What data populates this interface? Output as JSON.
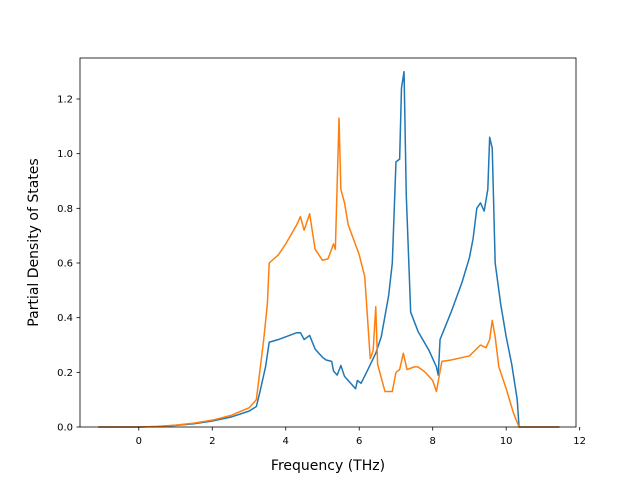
{
  "chart_data": {
    "type": "line",
    "title": "",
    "xlabel": "Frequency (THz)",
    "ylabel": "Partial Density of States",
    "xlim": [
      -1.6,
      11.9
    ],
    "ylim": [
      0.0,
      1.35
    ],
    "xticks": [
      0,
      2,
      4,
      6,
      8,
      10,
      12
    ],
    "yticks": [
      0.0,
      0.2,
      0.4,
      0.6,
      0.8,
      1.0,
      1.2
    ],
    "xtick_labels": [
      "0",
      "2",
      "4",
      "6",
      "8",
      "10",
      "12"
    ],
    "ytick_labels": [
      "0.0",
      "0.2",
      "0.4",
      "0.6",
      "0.8",
      "1.0",
      "1.2"
    ],
    "grid": false,
    "legend": "none",
    "series": [
      {
        "color": "#1f77b4",
        "points": [
          [
            -1.1,
            0.0
          ],
          [
            0.0,
            0.0
          ],
          [
            0.5,
            0.002
          ],
          [
            1.0,
            0.006
          ],
          [
            1.5,
            0.012
          ],
          [
            2.0,
            0.022
          ],
          [
            2.5,
            0.036
          ],
          [
            3.0,
            0.058
          ],
          [
            3.2,
            0.075
          ],
          [
            3.3,
            0.13
          ],
          [
            3.45,
            0.22
          ],
          [
            3.55,
            0.31
          ],
          [
            3.8,
            0.32
          ],
          [
            4.1,
            0.335
          ],
          [
            4.3,
            0.345
          ],
          [
            4.4,
            0.345
          ],
          [
            4.5,
            0.32
          ],
          [
            4.65,
            0.335
          ],
          [
            4.8,
            0.285
          ],
          [
            5.0,
            0.255
          ],
          [
            5.1,
            0.245
          ],
          [
            5.25,
            0.24
          ],
          [
            5.3,
            0.205
          ],
          [
            5.4,
            0.19
          ],
          [
            5.5,
            0.225
          ],
          [
            5.6,
            0.185
          ],
          [
            5.8,
            0.155
          ],
          [
            5.9,
            0.14
          ],
          [
            5.95,
            0.17
          ],
          [
            6.05,
            0.16
          ],
          [
            6.2,
            0.2
          ],
          [
            6.45,
            0.27
          ],
          [
            6.6,
            0.33
          ],
          [
            6.8,
            0.48
          ],
          [
            6.9,
            0.6
          ],
          [
            7.0,
            0.97
          ],
          [
            7.1,
            0.98
          ],
          [
            7.15,
            1.24
          ],
          [
            7.22,
            1.3
          ],
          [
            7.28,
            0.85
          ],
          [
            7.4,
            0.42
          ],
          [
            7.6,
            0.35
          ],
          [
            7.9,
            0.28
          ],
          [
            8.1,
            0.22
          ],
          [
            8.15,
            0.19
          ],
          [
            8.2,
            0.32
          ],
          [
            8.5,
            0.42
          ],
          [
            8.8,
            0.53
          ],
          [
            9.0,
            0.62
          ],
          [
            9.1,
            0.69
          ],
          [
            9.2,
            0.8
          ],
          [
            9.3,
            0.82
          ],
          [
            9.4,
            0.79
          ],
          [
            9.5,
            0.87
          ],
          [
            9.55,
            1.06
          ],
          [
            9.62,
            1.02
          ],
          [
            9.7,
            0.6
          ],
          [
            9.85,
            0.45
          ],
          [
            10.0,
            0.33
          ],
          [
            10.15,
            0.23
          ],
          [
            10.3,
            0.1
          ],
          [
            10.35,
            0.0
          ],
          [
            11.45,
            0.0
          ]
        ]
      },
      {
        "color": "#ff7f0e",
        "points": [
          [
            -1.1,
            0.0
          ],
          [
            0.0,
            0.0
          ],
          [
            0.5,
            0.002
          ],
          [
            1.0,
            0.007
          ],
          [
            1.5,
            0.014
          ],
          [
            2.0,
            0.025
          ],
          [
            2.5,
            0.042
          ],
          [
            3.0,
            0.07
          ],
          [
            3.2,
            0.1
          ],
          [
            3.4,
            0.32
          ],
          [
            3.5,
            0.45
          ],
          [
            3.55,
            0.6
          ],
          [
            3.8,
            0.63
          ],
          [
            4.0,
            0.67
          ],
          [
            4.3,
            0.74
          ],
          [
            4.4,
            0.77
          ],
          [
            4.5,
            0.72
          ],
          [
            4.65,
            0.78
          ],
          [
            4.8,
            0.65
          ],
          [
            5.0,
            0.61
          ],
          [
            5.15,
            0.615
          ],
          [
            5.3,
            0.67
          ],
          [
            5.35,
            0.65
          ],
          [
            5.45,
            1.13
          ],
          [
            5.5,
            0.87
          ],
          [
            5.6,
            0.82
          ],
          [
            5.7,
            0.74
          ],
          [
            6.0,
            0.63
          ],
          [
            6.15,
            0.55
          ],
          [
            6.3,
            0.25
          ],
          [
            6.38,
            0.28
          ],
          [
            6.45,
            0.44
          ],
          [
            6.5,
            0.23
          ],
          [
            6.6,
            0.18
          ],
          [
            6.7,
            0.13
          ],
          [
            6.9,
            0.13
          ],
          [
            7.0,
            0.2
          ],
          [
            7.1,
            0.21
          ],
          [
            7.2,
            0.27
          ],
          [
            7.3,
            0.21
          ],
          [
            7.5,
            0.22
          ],
          [
            7.6,
            0.22
          ],
          [
            7.8,
            0.2
          ],
          [
            8.0,
            0.17
          ],
          [
            8.1,
            0.13
          ],
          [
            8.25,
            0.24
          ],
          [
            8.5,
            0.245
          ],
          [
            9.0,
            0.26
          ],
          [
            9.3,
            0.3
          ],
          [
            9.45,
            0.29
          ],
          [
            9.55,
            0.32
          ],
          [
            9.62,
            0.39
          ],
          [
            9.7,
            0.33
          ],
          [
            9.8,
            0.22
          ],
          [
            10.0,
            0.14
          ],
          [
            10.2,
            0.05
          ],
          [
            10.35,
            0.0
          ],
          [
            11.45,
            0.0
          ]
        ]
      }
    ]
  }
}
